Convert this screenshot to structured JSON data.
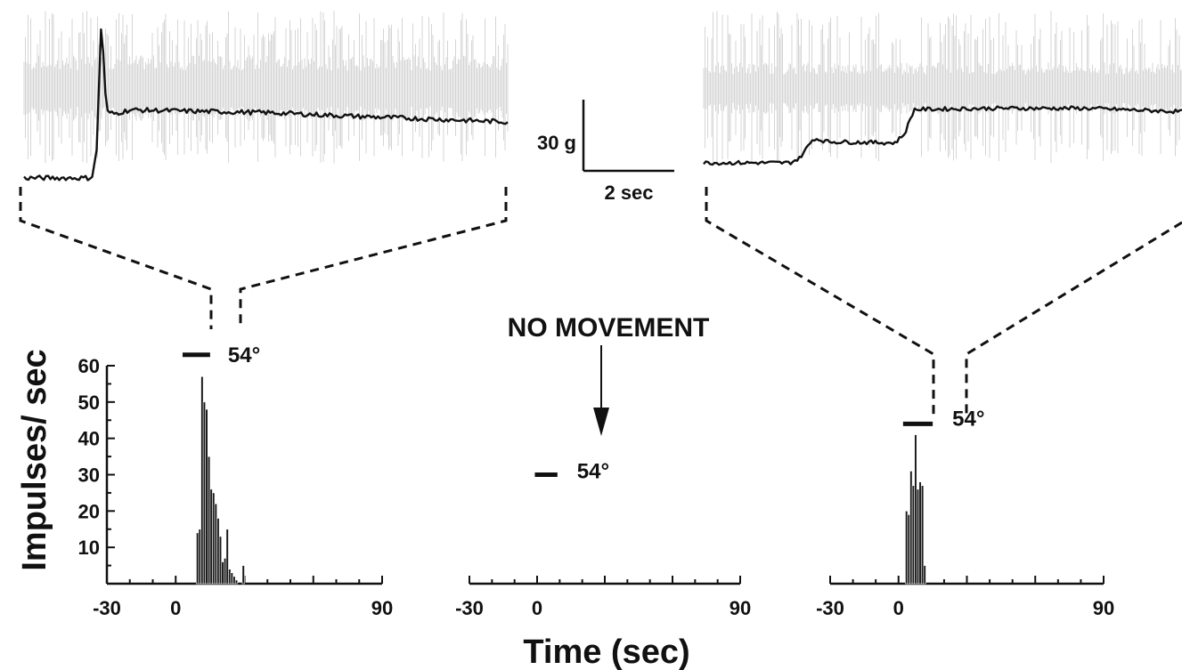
{
  "figure": {
    "x_axis_title": "Time (sec)",
    "y_axis_title": "Impulses/ sec",
    "scale_bar": {
      "force_label": "30 g",
      "time_label": "2 sec"
    },
    "center_annotation": "NO MOVEMENT",
    "colors": {
      "trace_gray": "#c4c4c4",
      "ink": "#111111",
      "bars": "#1a1a1a"
    }
  },
  "chart_data": [
    {
      "type": "bar",
      "panel": "left",
      "stimulus_label": "54°",
      "stimulus_interval": [
        3,
        15
      ],
      "stimulus_level": 63,
      "xlim": [
        -30,
        90
      ],
      "ylim": [
        0,
        60
      ],
      "xticks": [
        -30,
        0,
        90
      ],
      "yticks": [
        10,
        20,
        30,
        40,
        50,
        60
      ],
      "bin_width": 1,
      "bins": [
        {
          "x": 9,
          "y": 14
        },
        {
          "x": 10,
          "y": 15
        },
        {
          "x": 11,
          "y": 57
        },
        {
          "x": 12,
          "y": 50
        },
        {
          "x": 13,
          "y": 48
        },
        {
          "x": 14,
          "y": 35
        },
        {
          "x": 15,
          "y": 26
        },
        {
          "x": 16,
          "y": 25
        },
        {
          "x": 17,
          "y": 22
        },
        {
          "x": 18,
          "y": 18
        },
        {
          "x": 19,
          "y": 13
        },
        {
          "x": 20,
          "y": 6
        },
        {
          "x": 21,
          "y": 7
        },
        {
          "x": 22,
          "y": 15
        },
        {
          "x": 23,
          "y": 4
        },
        {
          "x": 24,
          "y": 3
        },
        {
          "x": 25,
          "y": 2
        },
        {
          "x": 26,
          "y": 1
        },
        {
          "x": 29,
          "y": 5
        }
      ]
    },
    {
      "type": "bar",
      "panel": "center",
      "stimulus_label": "54°",
      "stimulus_interval": [
        -1,
        9
      ],
      "stimulus_level": 30,
      "xlim": [
        -30,
        90
      ],
      "ylim": [
        0,
        60
      ],
      "xticks": [
        -30,
        0,
        90
      ],
      "bin_width": 1,
      "bins": []
    },
    {
      "type": "bar",
      "panel": "right",
      "stimulus_label": "54°",
      "stimulus_interval": [
        2,
        15
      ],
      "stimulus_level": 44,
      "xlim": [
        -30,
        90
      ],
      "ylim": [
        0,
        60
      ],
      "xticks": [
        -30,
        0,
        90
      ],
      "bin_width": 1,
      "bins": [
        {
          "x": 3,
          "y": 20
        },
        {
          "x": 4,
          "y": 19
        },
        {
          "x": 5,
          "y": 31
        },
        {
          "x": 6,
          "y": 27
        },
        {
          "x": 7,
          "y": 41
        },
        {
          "x": 8,
          "y": 26
        },
        {
          "x": 9,
          "y": 28
        },
        {
          "x": 10,
          "y": 27
        },
        {
          "x": 11,
          "y": 5
        }
      ]
    }
  ],
  "traces": [
    {
      "panel": "left",
      "force_trace": [
        {
          "t": 0.0,
          "f": 0.0
        },
        {
          "t": 0.14,
          "f": 0.0
        },
        {
          "t": 0.15,
          "f": 2.0
        },
        {
          "t": 0.16,
          "f": 12.0
        },
        {
          "t": 0.17,
          "f": 5.0
        },
        {
          "t": 0.185,
          "f": 4.8
        },
        {
          "t": 0.22,
          "f": 5.1
        },
        {
          "t": 0.35,
          "f": 5.0
        },
        {
          "t": 0.5,
          "f": 4.9
        },
        {
          "t": 0.7,
          "f": 4.6
        },
        {
          "t": 1.0,
          "f": 4.2
        }
      ]
    },
    {
      "panel": "right",
      "force_trace": [
        {
          "t": 0.0,
          "f": 0.0
        },
        {
          "t": 0.18,
          "f": 0.0
        },
        {
          "t": 0.2,
          "f": 0.4
        },
        {
          "t": 0.23,
          "f": 2.2
        },
        {
          "t": 0.26,
          "f": 1.9
        },
        {
          "t": 0.4,
          "f": 1.8
        },
        {
          "t": 0.42,
          "f": 2.6
        },
        {
          "t": 0.44,
          "f": 4.8
        },
        {
          "t": 0.6,
          "f": 4.9
        },
        {
          "t": 0.8,
          "f": 4.9
        },
        {
          "t": 1.0,
          "f": 4.6
        }
      ]
    }
  ]
}
